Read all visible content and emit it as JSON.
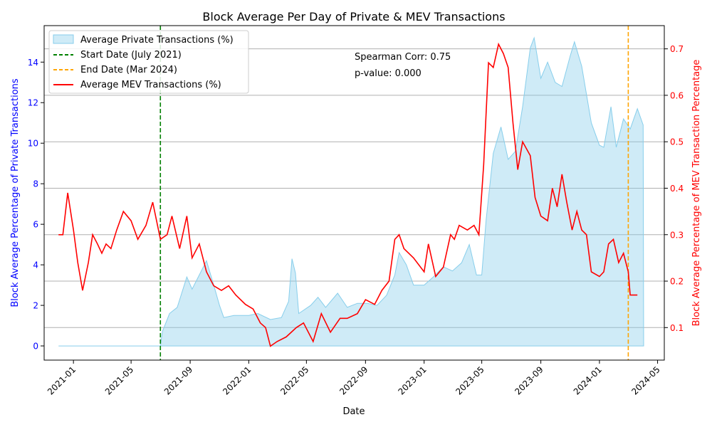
{
  "chart_data": {
    "type": "area+line",
    "title": "Block Average Per Day of Private & MEV Transactions",
    "xlabel": "Date",
    "ylabel_left": "Block Average Percentage of Private Transactions",
    "ylabel_right": "Block Average Percentage of MEV Transaction Percentage",
    "colors": {
      "private": "#87ceeb",
      "mev": "#ff0000",
      "start": "#008000",
      "end": "#ffa500",
      "left_axis": "#0000ff",
      "right_axis": "#ff0000"
    },
    "x_ticks": [
      "2021-01",
      "2021-05",
      "2021-09",
      "2022-01",
      "2022-05",
      "2022-09",
      "2023-01",
      "2023-05",
      "2023-09",
      "2024-01",
      "2024-05"
    ],
    "x_range": [
      "2020-11-01",
      "2024-05-15"
    ],
    "ylim_left": [
      -0.7,
      15.8
    ],
    "yticks_left": [
      "0",
      "2",
      "4",
      "6",
      "8",
      "10",
      "12",
      "14"
    ],
    "ylim_right": [
      0.03,
      0.75
    ],
    "yticks_right": [
      "0.1",
      "0.2",
      "0.3",
      "0.4",
      "0.5",
      "0.6",
      "0.7"
    ],
    "start_date": "2021-07-01",
    "end_date": "2024-03-01",
    "annotation": {
      "corr": "Spearman Corr: 0.75",
      "pvalue": "p-value: 0.000"
    },
    "legend": {
      "private": "Average Private Transactions (%)",
      "start": "Start Date (July 2021)",
      "end": "End Date (Mar 2024)",
      "mev": "Average MEV Transactions (%)"
    },
    "series": [
      {
        "name": "Average Private Transactions (%)",
        "points": [
          [
            "2020-12-01",
            0
          ],
          [
            "2021-07-01",
            0
          ],
          [
            "2021-07-05",
            0.7
          ],
          [
            "2021-07-20",
            1.6
          ],
          [
            "2021-08-05",
            1.9
          ],
          [
            "2021-08-25",
            3.4
          ],
          [
            "2021-09-05",
            2.8
          ],
          [
            "2021-09-20",
            3.5
          ],
          [
            "2021-10-05",
            4.2
          ],
          [
            "2021-10-20",
            3.0
          ],
          [
            "2021-11-01",
            2.0
          ],
          [
            "2021-11-10",
            1.4
          ],
          [
            "2021-12-01",
            1.5
          ],
          [
            "2022-01-01",
            1.5
          ],
          [
            "2022-01-20",
            1.6
          ],
          [
            "2022-02-15",
            1.3
          ],
          [
            "2022-03-10",
            1.4
          ],
          [
            "2022-03-25",
            2.2
          ],
          [
            "2022-04-01",
            4.3
          ],
          [
            "2022-04-08",
            3.6
          ],
          [
            "2022-04-15",
            1.6
          ],
          [
            "2022-05-10",
            2.0
          ],
          [
            "2022-05-25",
            2.4
          ],
          [
            "2022-06-10",
            1.9
          ],
          [
            "2022-07-05",
            2.6
          ],
          [
            "2022-07-25",
            1.9
          ],
          [
            "2022-08-15",
            2.1
          ],
          [
            "2022-09-05",
            2.1
          ],
          [
            "2022-09-25",
            2.0
          ],
          [
            "2022-10-15",
            2.5
          ],
          [
            "2022-11-01",
            3.5
          ],
          [
            "2022-11-10",
            4.6
          ],
          [
            "2022-11-25",
            4.0
          ],
          [
            "2022-12-10",
            3.0
          ],
          [
            "2023-01-01",
            3.0
          ],
          [
            "2023-01-20",
            3.4
          ],
          [
            "2023-02-10",
            3.9
          ],
          [
            "2023-03-01",
            3.7
          ],
          [
            "2023-03-20",
            4.1
          ],
          [
            "2023-04-05",
            5.0
          ],
          [
            "2023-04-20",
            3.5
          ],
          [
            "2023-05-01",
            3.5
          ],
          [
            "2023-05-10",
            6.2
          ],
          [
            "2023-05-25",
            9.5
          ],
          [
            "2023-06-10",
            10.8
          ],
          [
            "2023-06-25",
            9.2
          ],
          [
            "2023-07-10",
            9.6
          ],
          [
            "2023-07-25",
            11.8
          ],
          [
            "2023-08-10",
            14.7
          ],
          [
            "2023-08-18",
            15.2
          ],
          [
            "2023-09-01",
            13.2
          ],
          [
            "2023-09-15",
            14.0
          ],
          [
            "2023-10-01",
            13.0
          ],
          [
            "2023-10-15",
            12.8
          ],
          [
            "2023-11-01",
            14.3
          ],
          [
            "2023-11-10",
            15.0
          ],
          [
            "2023-11-25",
            13.8
          ],
          [
            "2023-12-15",
            11.0
          ],
          [
            "2024-01-01",
            9.9
          ],
          [
            "2024-01-10",
            9.8
          ],
          [
            "2024-01-25",
            11.8
          ],
          [
            "2024-02-05",
            9.8
          ],
          [
            "2024-02-20",
            11.2
          ],
          [
            "2024-03-05",
            10.7
          ],
          [
            "2024-03-20",
            11.7
          ],
          [
            "2024-04-01",
            10.9
          ],
          [
            "2024-04-02",
            0
          ]
        ]
      },
      {
        "name": "Average MEV Transactions (%)",
        "points": [
          [
            "2020-12-01",
            0.3
          ],
          [
            "2020-12-10",
            0.3
          ],
          [
            "2020-12-20",
            0.39
          ],
          [
            "2021-01-01",
            0.31
          ],
          [
            "2021-01-10",
            0.24
          ],
          [
            "2021-01-20",
            0.18
          ],
          [
            "2021-02-01",
            0.24
          ],
          [
            "2021-02-10",
            0.3
          ],
          [
            "2021-02-20",
            0.28
          ],
          [
            "2021-03-01",
            0.26
          ],
          [
            "2021-03-10",
            0.28
          ],
          [
            "2021-03-20",
            0.27
          ],
          [
            "2021-04-01",
            0.31
          ],
          [
            "2021-04-15",
            0.35
          ],
          [
            "2021-05-01",
            0.33
          ],
          [
            "2021-05-15",
            0.29
          ],
          [
            "2021-06-01",
            0.32
          ],
          [
            "2021-06-15",
            0.37
          ],
          [
            "2021-07-01",
            0.29
          ],
          [
            "2021-07-15",
            0.3
          ],
          [
            "2021-07-25",
            0.34
          ],
          [
            "2021-08-10",
            0.27
          ],
          [
            "2021-08-25",
            0.34
          ],
          [
            "2021-09-05",
            0.25
          ],
          [
            "2021-09-20",
            0.28
          ],
          [
            "2021-10-05",
            0.22
          ],
          [
            "2021-10-20",
            0.19
          ],
          [
            "2021-11-05",
            0.18
          ],
          [
            "2021-11-20",
            0.19
          ],
          [
            "2021-12-05",
            0.17
          ],
          [
            "2021-12-25",
            0.15
          ],
          [
            "2022-01-10",
            0.14
          ],
          [
            "2022-01-25",
            0.11
          ],
          [
            "2022-02-05",
            0.1
          ],
          [
            "2022-02-15",
            0.06
          ],
          [
            "2022-03-01",
            0.07
          ],
          [
            "2022-03-20",
            0.08
          ],
          [
            "2022-04-10",
            0.1
          ],
          [
            "2022-04-25",
            0.11
          ],
          [
            "2022-05-15",
            0.07
          ],
          [
            "2022-06-01",
            0.13
          ],
          [
            "2022-06-20",
            0.09
          ],
          [
            "2022-07-10",
            0.12
          ],
          [
            "2022-07-25",
            0.12
          ],
          [
            "2022-08-15",
            0.13
          ],
          [
            "2022-09-01",
            0.16
          ],
          [
            "2022-09-20",
            0.15
          ],
          [
            "2022-10-05",
            0.18
          ],
          [
            "2022-10-20",
            0.2
          ],
          [
            "2022-11-01",
            0.29
          ],
          [
            "2022-11-10",
            0.3
          ],
          [
            "2022-11-20",
            0.27
          ],
          [
            "2022-12-10",
            0.25
          ],
          [
            "2023-01-01",
            0.22
          ],
          [
            "2023-01-10",
            0.28
          ],
          [
            "2023-01-25",
            0.21
          ],
          [
            "2023-02-10",
            0.23
          ],
          [
            "2023-02-25",
            0.3
          ],
          [
            "2023-03-05",
            0.29
          ],
          [
            "2023-03-15",
            0.32
          ],
          [
            "2023-04-01",
            0.31
          ],
          [
            "2023-04-15",
            0.32
          ],
          [
            "2023-04-25",
            0.3
          ],
          [
            "2023-05-05",
            0.45
          ],
          [
            "2023-05-15",
            0.67
          ],
          [
            "2023-05-25",
            0.66
          ],
          [
            "2023-06-05",
            0.71
          ],
          [
            "2023-06-15",
            0.69
          ],
          [
            "2023-06-25",
            0.66
          ],
          [
            "2023-07-05",
            0.54
          ],
          [
            "2023-07-15",
            0.44
          ],
          [
            "2023-07-25",
            0.5
          ],
          [
            "2023-08-10",
            0.47
          ],
          [
            "2023-08-20",
            0.38
          ],
          [
            "2023-09-01",
            0.34
          ],
          [
            "2023-09-15",
            0.33
          ],
          [
            "2023-09-25",
            0.4
          ],
          [
            "2023-10-05",
            0.36
          ],
          [
            "2023-10-15",
            0.43
          ],
          [
            "2023-10-25",
            0.37
          ],
          [
            "2023-11-05",
            0.31
          ],
          [
            "2023-11-15",
            0.35
          ],
          [
            "2023-11-25",
            0.31
          ],
          [
            "2023-12-05",
            0.3
          ],
          [
            "2023-12-15",
            0.22
          ],
          [
            "2024-01-01",
            0.21
          ],
          [
            "2024-01-10",
            0.22
          ],
          [
            "2024-01-20",
            0.28
          ],
          [
            "2024-01-30",
            0.29
          ],
          [
            "2024-02-10",
            0.24
          ],
          [
            "2024-02-20",
            0.26
          ],
          [
            "2024-03-01",
            0.22
          ],
          [
            "2024-03-05",
            0.17
          ],
          [
            "2024-03-20",
            0.17
          ]
        ]
      }
    ]
  }
}
